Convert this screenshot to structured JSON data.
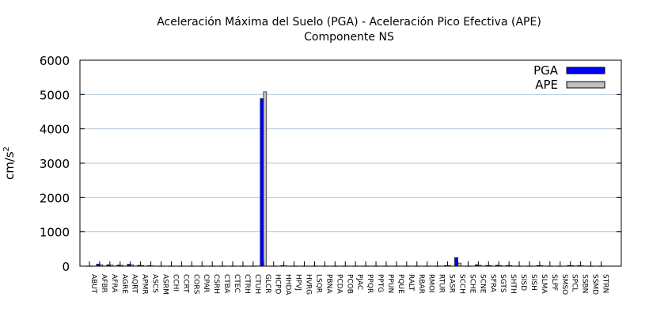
{
  "chart_data": {
    "type": "bar",
    "title": "Aceleración Máxima del Suelo (PGA) -  Aceleración Pico Efectiva (APE)",
    "subtitle": "Componente NS",
    "xlabel": "",
    "ylabel": "cm/s",
    "ylabel_superscript": "2",
    "ylim": [
      0,
      6000
    ],
    "yticks": [
      0,
      1000,
      2000,
      3000,
      4000,
      5000,
      6000
    ],
    "grid": "horizontal",
    "legend_position": "top-right",
    "categories": [
      "ABUT",
      "AFBR",
      "AFRA",
      "AGRE",
      "AQRT",
      "APMR",
      "ASCS",
      "ASRM",
      "CCHI",
      "CCRT",
      "CORS",
      "CPAR",
      "CSRH",
      "CTBA",
      "CTEC",
      "CTRH",
      "CTUH",
      "GLCR",
      "HCPD",
      "HHDA",
      "HPVJ",
      "HVRG",
      "LSQR",
      "PBNA",
      "PCDA",
      "PCOB",
      "PJAC",
      "PPQR",
      "PPTG",
      "PPUN",
      "PQUE",
      "RALT",
      "RBAR",
      "RMOI",
      "RTUR",
      "SASR",
      "SCCH",
      "SCHE",
      "SCNE",
      "SFRA",
      "SGTS",
      "SHTH",
      "SISD",
      "SISH",
      "SLMA",
      "SLPF",
      "SMSO",
      "SPCL",
      "SSBN",
      "SSMD",
      "STRN"
    ],
    "series": [
      {
        "name": "PGA",
        "color": "#0000ff",
        "values": [
          5,
          60,
          40,
          30,
          55,
          25,
          15,
          5,
          5,
          5,
          5,
          5,
          5,
          5,
          5,
          5,
          5,
          4880,
          5,
          15,
          5,
          5,
          5,
          5,
          5,
          5,
          5,
          5,
          5,
          5,
          5,
          5,
          5,
          5,
          5,
          20,
          250,
          5,
          40,
          20,
          25,
          20,
          5,
          5,
          20,
          5,
          5,
          20,
          15,
          5,
          5
        ]
      },
      {
        "name": "APE",
        "color": "#c0c0c0",
        "values": [
          5,
          40,
          30,
          25,
          40,
          20,
          10,
          5,
          5,
          5,
          5,
          5,
          5,
          5,
          5,
          5,
          5,
          5080,
          5,
          10,
          5,
          5,
          5,
          5,
          5,
          5,
          5,
          5,
          5,
          5,
          5,
          5,
          5,
          5,
          5,
          15,
          90,
          5,
          25,
          15,
          15,
          15,
          5,
          5,
          15,
          5,
          5,
          15,
          10,
          5,
          5
        ]
      }
    ]
  }
}
